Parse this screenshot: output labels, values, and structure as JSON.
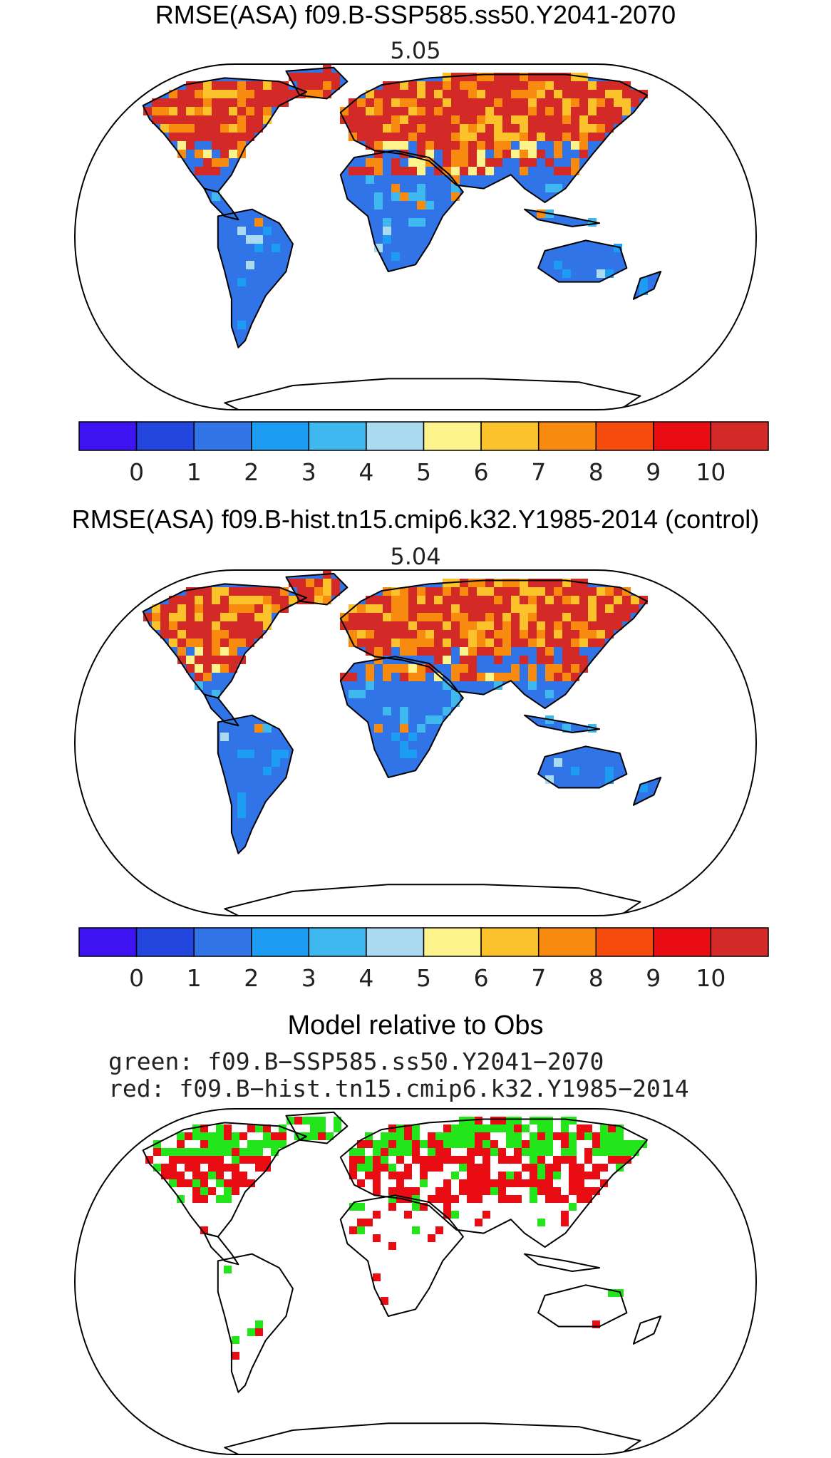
{
  "panels": [
    {
      "title": "RMSE(ASA) f09.B-SSP585.ss50.Y2041-2070",
      "value": "5.05"
    },
    {
      "title": "RMSE(ASA) f09.B-hist.tn15.cmip6.k32.Y1985-2014 (control)",
      "value": "5.04"
    },
    {
      "title": "Model relative to Obs",
      "legend_green": "green: f09.B−SSP585.ss50.Y2041−2070",
      "legend_red": "red: f09.B−hist.tn15.cmip6.k32.Y1985−2014"
    }
  ],
  "colorbar": {
    "colors": [
      "#3f12f2",
      "#2346de",
      "#3174e8",
      "#1d9cf3",
      "#3fb8f0",
      "#a9daf0",
      "#fdf38c",
      "#fbc22c",
      "#f88b0f",
      "#f64b0d",
      "#ea0c13",
      "#d32a27"
    ],
    "tick_labels": [
      "0",
      "1",
      "2",
      "3",
      "4",
      "5",
      "6",
      "7",
      "8",
      "9",
      "10"
    ]
  },
  "colors": {
    "ocean": "#ffffff",
    "land_blue": "#3174e8",
    "land_red": "#d32a27",
    "land_orange": "#f88b0f",
    "diff_green": "#22e61a",
    "diff_red": "#ea0c13",
    "coast": "#000000"
  }
}
